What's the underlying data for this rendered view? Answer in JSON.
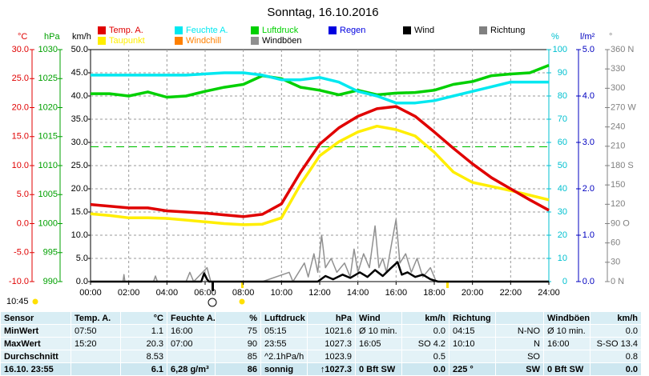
{
  "chart_data": {
    "type": "line",
    "title": "Sonntag, 16.10.2016",
    "xlim": [
      0,
      24
    ],
    "xticks": [
      {
        "value": 0,
        "label": "00:00"
      },
      {
        "value": 2,
        "label": "02:00"
      },
      {
        "value": 4,
        "label": "04:00"
      },
      {
        "value": 6,
        "label": "06:00"
      },
      {
        "value": 8,
        "label": "08:00"
      },
      {
        "value": 10,
        "label": "10:00"
      },
      {
        "value": 12,
        "label": "12:00"
      },
      {
        "value": 14,
        "label": "14:00"
      },
      {
        "value": 16,
        "label": "16:00"
      },
      {
        "value": 18,
        "label": "18:00"
      },
      {
        "value": 20,
        "label": "20:00"
      },
      {
        "value": 22,
        "label": "22:00"
      },
      {
        "value": 24,
        "label": "24:00"
      }
    ],
    "x": [
      0,
      1,
      2,
      3,
      4,
      5,
      6,
      7,
      8,
      9,
      10,
      11,
      12,
      13,
      14,
      15,
      16,
      17,
      18,
      19,
      20,
      21,
      22,
      23,
      24
    ],
    "grid": true,
    "axes": {
      "temp": {
        "label": "°C",
        "color": "#e00000",
        "lim": [
          -10,
          30
        ],
        "ticks": [
          {
            "value": -10,
            "label": "-10.0"
          },
          {
            "value": -5,
            "label": "-5.0"
          },
          {
            "value": 0,
            "label": "0.0"
          },
          {
            "value": 5,
            "label": "5.0"
          },
          {
            "value": 10,
            "label": "10.0"
          },
          {
            "value": 15,
            "label": "15.0"
          },
          {
            "value": 20,
            "label": "20.0"
          },
          {
            "value": 25,
            "label": "25.0"
          },
          {
            "value": 30,
            "label": "30.0"
          }
        ]
      },
      "press": {
        "label": "hPa",
        "color": "#00a000",
        "lim": [
          990,
          1030
        ],
        "ticks": [
          990,
          995,
          1000,
          1005,
          1010,
          1015,
          1020,
          1025,
          1030
        ]
      },
      "wind": {
        "label": "km/h",
        "color": "#000000",
        "lim": [
          0,
          50
        ],
        "ticks": [
          {
            "value": 0,
            "label": "0.0"
          },
          {
            "value": 5,
            "label": "5.0"
          },
          {
            "value": 10,
            "label": "10.0"
          },
          {
            "value": 15,
            "label": "15.0"
          },
          {
            "value": 20,
            "label": "20.0"
          },
          {
            "value": 25,
            "label": "25.0"
          },
          {
            "value": 30,
            "label": "30.0"
          },
          {
            "value": 35,
            "label": "35.0"
          },
          {
            "value": 40,
            "label": "40.0"
          },
          {
            "value": 45,
            "label": "45.0"
          },
          {
            "value": 50,
            "label": "50.0"
          }
        ]
      },
      "hum": {
        "label": "%",
        "color": "#00c0d0",
        "lim": [
          0,
          100
        ],
        "ticks": [
          0,
          10,
          20,
          30,
          40,
          50,
          60,
          70,
          80,
          90,
          100
        ]
      },
      "rain": {
        "label": "l/m²",
        "color": "#0000c0",
        "lim": [
          0,
          5
        ],
        "ticks": [
          {
            "value": 0,
            "label": "0.0"
          },
          {
            "value": 1,
            "label": "1.0"
          },
          {
            "value": 2,
            "label": "2.0"
          },
          {
            "value": 3,
            "label": "3.0"
          },
          {
            "value": 4,
            "label": "4.0"
          },
          {
            "value": 5,
            "label": "5.0"
          }
        ]
      },
      "dir": {
        "label": "°",
        "color": "#808080",
        "lim": [
          0,
          360
        ],
        "ticks": [
          {
            "value": 0,
            "label": "0 N"
          },
          30,
          60,
          {
            "value": 90,
            "label": "90 O"
          },
          120,
          150,
          {
            "value": 180,
            "label": "180 S"
          },
          210,
          240,
          {
            "value": 270,
            "label": "270 W"
          },
          300,
          330,
          {
            "value": 360,
            "label": "360 N"
          }
        ]
      }
    },
    "reference_line": {
      "axis": "press",
      "value": 1013.25,
      "color": "#00c000"
    },
    "series": [
      {
        "name": "Temp. A.",
        "color": "#e00000",
        "axis": "temp",
        "values": [
          3.3,
          3.0,
          2.7,
          2.7,
          2.2,
          2.0,
          1.8,
          1.5,
          1.2,
          1.6,
          3.4,
          8.9,
          13.7,
          16.5,
          18.5,
          19.8,
          20.2,
          18.5,
          15.8,
          13.0,
          10.3,
          7.9,
          6.0,
          4.1,
          2.3
        ]
      },
      {
        "name": "Feuchte A.",
        "color": "#00e8f0",
        "axis": "hum",
        "values": [
          89,
          89,
          89,
          89,
          89,
          89,
          89.5,
          90,
          90,
          89,
          87,
          87,
          88,
          86,
          82,
          80,
          77,
          77,
          78,
          80,
          82,
          84,
          86,
          86,
          86
        ]
      },
      {
        "name": "Luftdruck",
        "color": "#00d000",
        "axis": "press",
        "values": [
          1022.4,
          1022.4,
          1022,
          1022.7,
          1021.8,
          1022,
          1022.8,
          1023.5,
          1024,
          1025.5,
          1025,
          1023.5,
          1023,
          1022.2,
          1023,
          1022.2,
          1022.5,
          1022.6,
          1023,
          1024,
          1024.5,
          1025.5,
          1025.8,
          1026,
          1027.3
        ]
      },
      {
        "name": "Regen",
        "color": "#0000e0",
        "axis": "rain"
      },
      {
        "name": "Wind",
        "color": "#000000",
        "axis": "wind",
        "x": [
          0,
          5.8,
          5.95,
          6.1,
          6.2,
          11.9,
          12.3,
          12.7,
          13.2,
          13.6,
          14.1,
          14.5,
          14.9,
          15.3,
          15.7,
          16.08,
          16.3,
          16.6,
          17,
          17.4,
          17.8,
          18.2,
          24
        ],
        "values": [
          0,
          0,
          1.8,
          0.5,
          0,
          0,
          1.2,
          0.5,
          1.5,
          0.8,
          2,
          1,
          2.5,
          1.2,
          2.8,
          4.2,
          1.5,
          2,
          1,
          1.5,
          0.5,
          0,
          0
        ]
      },
      {
        "name": "Richtung",
        "color": "#808080",
        "axis": "dir"
      },
      {
        "name": "Taupunkt",
        "color": "#ffee00",
        "axis": "temp",
        "values": [
          1.7,
          1.4,
          1.0,
          1.0,
          0.9,
          0.6,
          0.3,
          0,
          -0.2,
          -0.1,
          1.0,
          6.8,
          11.7,
          14.1,
          15.8,
          16.8,
          16.2,
          15.1,
          12.3,
          8.9,
          7.1,
          6.4,
          5.7,
          4.9,
          4.1
        ]
      },
      {
        "name": "Windchill",
        "color": "#ff8000",
        "axis": "temp"
      },
      {
        "name": "Windböen",
        "color": "#909090",
        "axis": "wind",
        "x": [
          0,
          1.7,
          1.75,
          1.8,
          3.3,
          3.4,
          3.5,
          5,
          5.2,
          5.4,
          6.1,
          6.3,
          9,
          10.4,
          10.6,
          11.2,
          11.4,
          11.7,
          11.9,
          12.1,
          12.3,
          12.6,
          12.9,
          13.3,
          13.6,
          13.8,
          14,
          14.3,
          14.6,
          14.9,
          15.1,
          15.3,
          15.5,
          15.8,
          16,
          16.2,
          16.5,
          16.8,
          17.1,
          17.4,
          17.8,
          18.1,
          24
        ],
        "values": [
          0,
          0,
          1.5,
          0,
          0,
          1.2,
          0,
          0,
          2,
          0,
          3,
          0,
          0,
          2,
          0,
          4,
          1,
          6,
          2,
          10,
          3,
          5,
          2,
          4,
          1,
          7,
          2,
          6,
          3,
          12,
          3,
          5,
          2,
          9,
          13.4,
          4,
          6,
          2,
          5,
          1,
          3,
          0,
          0
        ]
      }
    ],
    "time": "10:45"
  },
  "table": {
    "header": [
      "Sensor",
      "Temp. A.",
      "°C",
      "Feuchte A.",
      "%",
      "Luftdruck",
      "hPa",
      "Wind",
      "km/h",
      "Richtung",
      null,
      "Windböen",
      "km/h"
    ],
    "rows": [
      [
        "MinWert",
        "07:50",
        "1.1",
        "16:00",
        "75",
        "05:15",
        "1021.6",
        "Ø 10 min.",
        "0.0",
        "04:15",
        "N-NO",
        "Ø 10 min.",
        "0.0"
      ],
      [
        "MaxWert",
        "15:20",
        "20.3",
        "07:00",
        "90",
        "23:55",
        "1027.3",
        "16:05",
        "SO 4.2",
        "10:10",
        "N",
        "16:00",
        "S-SO 13.4"
      ],
      [
        "Durchschnitt",
        null,
        "8.53",
        null,
        "85",
        "^2.1hPa/h",
        "1023.9",
        null,
        "0.5",
        null,
        "SO",
        null,
        "0.8"
      ],
      [
        "16.10. 23:55",
        null,
        "6.1",
        "6,28 g/m³",
        "86",
        "sonnig",
        "↑1027.3",
        "0 Bft SW",
        "0.0",
        "225 °",
        "SW",
        "0 Bft SW",
        "0.0"
      ]
    ]
  }
}
